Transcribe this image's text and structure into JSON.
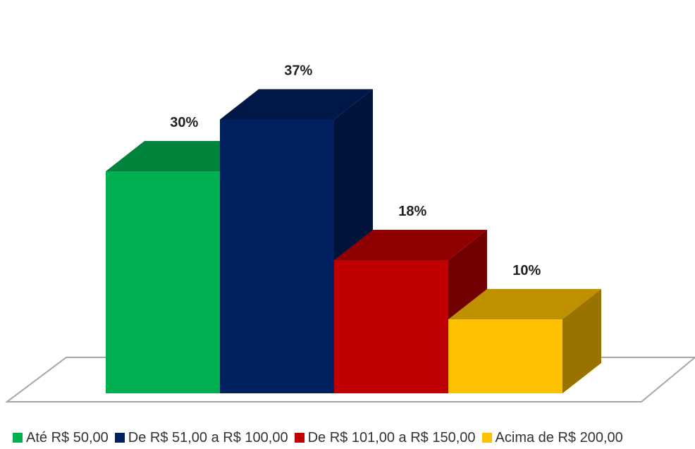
{
  "chart_data": {
    "type": "bar",
    "three_d": true,
    "title": "",
    "xlabel": "",
    "ylabel": "",
    "ylim": [
      0,
      40
    ],
    "grid": false,
    "legend_position": "bottom",
    "series": [
      {
        "name": "Até R$ 50,00",
        "value": 30,
        "label": "30%",
        "color": "#00B050"
      },
      {
        "name": "De R$ 51,00 a R$ 100,00",
        "value": 37,
        "label": "37%",
        "color": "#002060"
      },
      {
        "name": "De R$ 101,00 a R$ 150,00",
        "value": 18,
        "label": "18%",
        "color": "#C00000"
      },
      {
        "name": "Acima de R$ 200,00",
        "value": 10,
        "label": "10%",
        "color": "#FFC000"
      }
    ]
  }
}
